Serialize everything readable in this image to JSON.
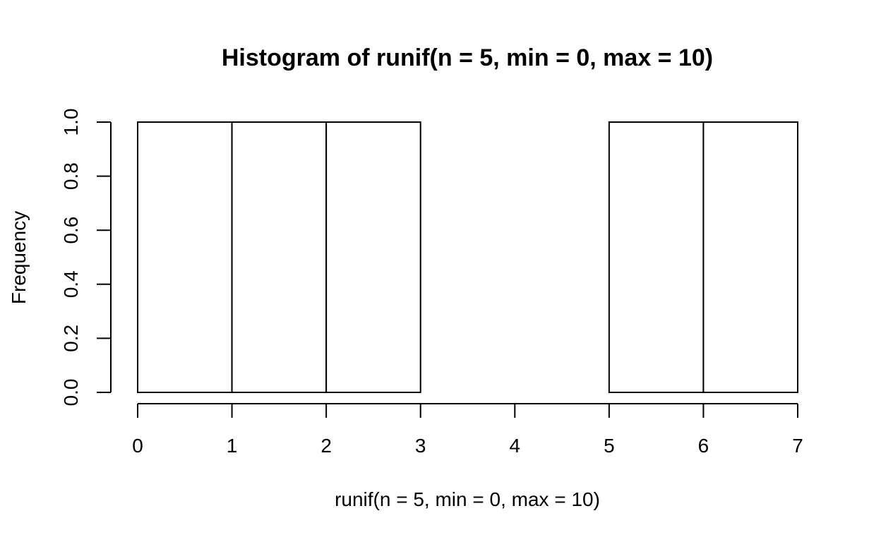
{
  "chart_data": {
    "type": "bar",
    "title": "Histogram of runif(n = 5, min = 0, max = 10)",
    "xlabel": "runif(n = 5, min = 0, max = 10)",
    "ylabel": "Frequency",
    "bin_edges": [
      0,
      1,
      2,
      3,
      4,
      5,
      6,
      7
    ],
    "values": [
      1,
      1,
      1,
      0,
      0,
      1,
      1
    ],
    "xlim": [
      0,
      7
    ],
    "ylim": [
      0,
      1
    ],
    "x_ticks": [
      0,
      1,
      2,
      3,
      4,
      5,
      6,
      7
    ],
    "x_tick_labels": [
      "0",
      "1",
      "2",
      "3",
      "4",
      "5",
      "6",
      "7"
    ],
    "y_ticks": [
      0,
      0.2,
      0.4,
      0.6,
      0.8,
      1.0
    ],
    "y_tick_labels": [
      "0.0",
      "0.2",
      "0.4",
      "0.6",
      "0.8",
      "1.0"
    ],
    "grid": false,
    "colors": {
      "bar_fill": "#ffffff",
      "bar_stroke": "#000000"
    }
  }
}
